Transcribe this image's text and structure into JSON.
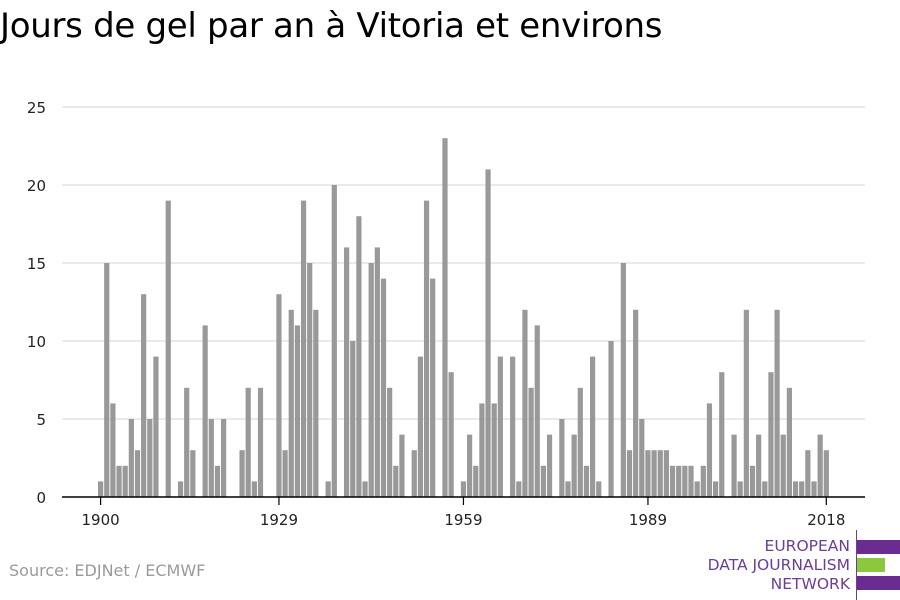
{
  "source": "Source: EDJNet / ECMWF",
  "logo": {
    "lines": [
      "EUROPEAN",
      "DATA JOURNALISM",
      "NETWORK"
    ],
    "colors": {
      "purple": "#6a2c91",
      "green": "#8dc63f"
    }
  },
  "colors": {
    "bar": "#999999",
    "grid": "#dddddd",
    "axis": "#000000"
  },
  "chart_data": {
    "type": "bar",
    "title": "Jours de gel par an à Vitoria et environs",
    "xlabel": "",
    "ylabel": "",
    "ylim": [
      0,
      25
    ],
    "yticks": [
      0,
      5,
      10,
      15,
      20,
      25
    ],
    "xticks": [
      1900,
      1929,
      1959,
      1989,
      2018
    ],
    "grid": true,
    "legend": "none",
    "x": [
      1900,
      1901,
      1902,
      1903,
      1904,
      1905,
      1906,
      1907,
      1908,
      1909,
      1910,
      1911,
      1912,
      1913,
      1914,
      1915,
      1916,
      1917,
      1918,
      1919,
      1920,
      1921,
      1922,
      1923,
      1924,
      1925,
      1926,
      1927,
      1928,
      1929,
      1930,
      1931,
      1932,
      1933,
      1934,
      1935,
      1936,
      1937,
      1938,
      1939,
      1940,
      1941,
      1942,
      1943,
      1944,
      1945,
      1946,
      1947,
      1948,
      1949,
      1950,
      1951,
      1952,
      1953,
      1954,
      1955,
      1956,
      1957,
      1958,
      1959,
      1960,
      1961,
      1962,
      1963,
      1964,
      1965,
      1966,
      1967,
      1968,
      1969,
      1970,
      1971,
      1972,
      1973,
      1974,
      1975,
      1976,
      1977,
      1978,
      1979,
      1980,
      1981,
      1982,
      1983,
      1984,
      1985,
      1986,
      1987,
      1988,
      1989,
      1990,
      1991,
      1992,
      1993,
      1994,
      1995,
      1996,
      1997,
      1998,
      1999,
      2000,
      2001,
      2002,
      2003,
      2004,
      2005,
      2006,
      2007,
      2008,
      2009,
      2010,
      2011,
      2012,
      2013,
      2014,
      2015,
      2016,
      2017,
      2018,
      2019
    ],
    "values": [
      1,
      15,
      6,
      2,
      2,
      5,
      3,
      13,
      5,
      9,
      0,
      19,
      0,
      1,
      7,
      3,
      0,
      11,
      5,
      2,
      5,
      0,
      0,
      3,
      7,
      1,
      7,
      0,
      0,
      13,
      3,
      12,
      11,
      19,
      15,
      12,
      0,
      1,
      20,
      0,
      16,
      10,
      18,
      1,
      15,
      16,
      14,
      7,
      2,
      4,
      0,
      3,
      9,
      19,
      14,
      0,
      23,
      8,
      0,
      1,
      4,
      2,
      6,
      21,
      6,
      9,
      0,
      9,
      1,
      12,
      7,
      11,
      2,
      4,
      0,
      5,
      1,
      4,
      7,
      2,
      9,
      1,
      0,
      10,
      0,
      15,
      3,
      12,
      5,
      3,
      3,
      3,
      3,
      2,
      2,
      2,
      2,
      1,
      2,
      6,
      1,
      8,
      0,
      4,
      1,
      12,
      2,
      4,
      1,
      8,
      12,
      4,
      7,
      1,
      1,
      3,
      1,
      4,
      3,
      0
    ]
  }
}
